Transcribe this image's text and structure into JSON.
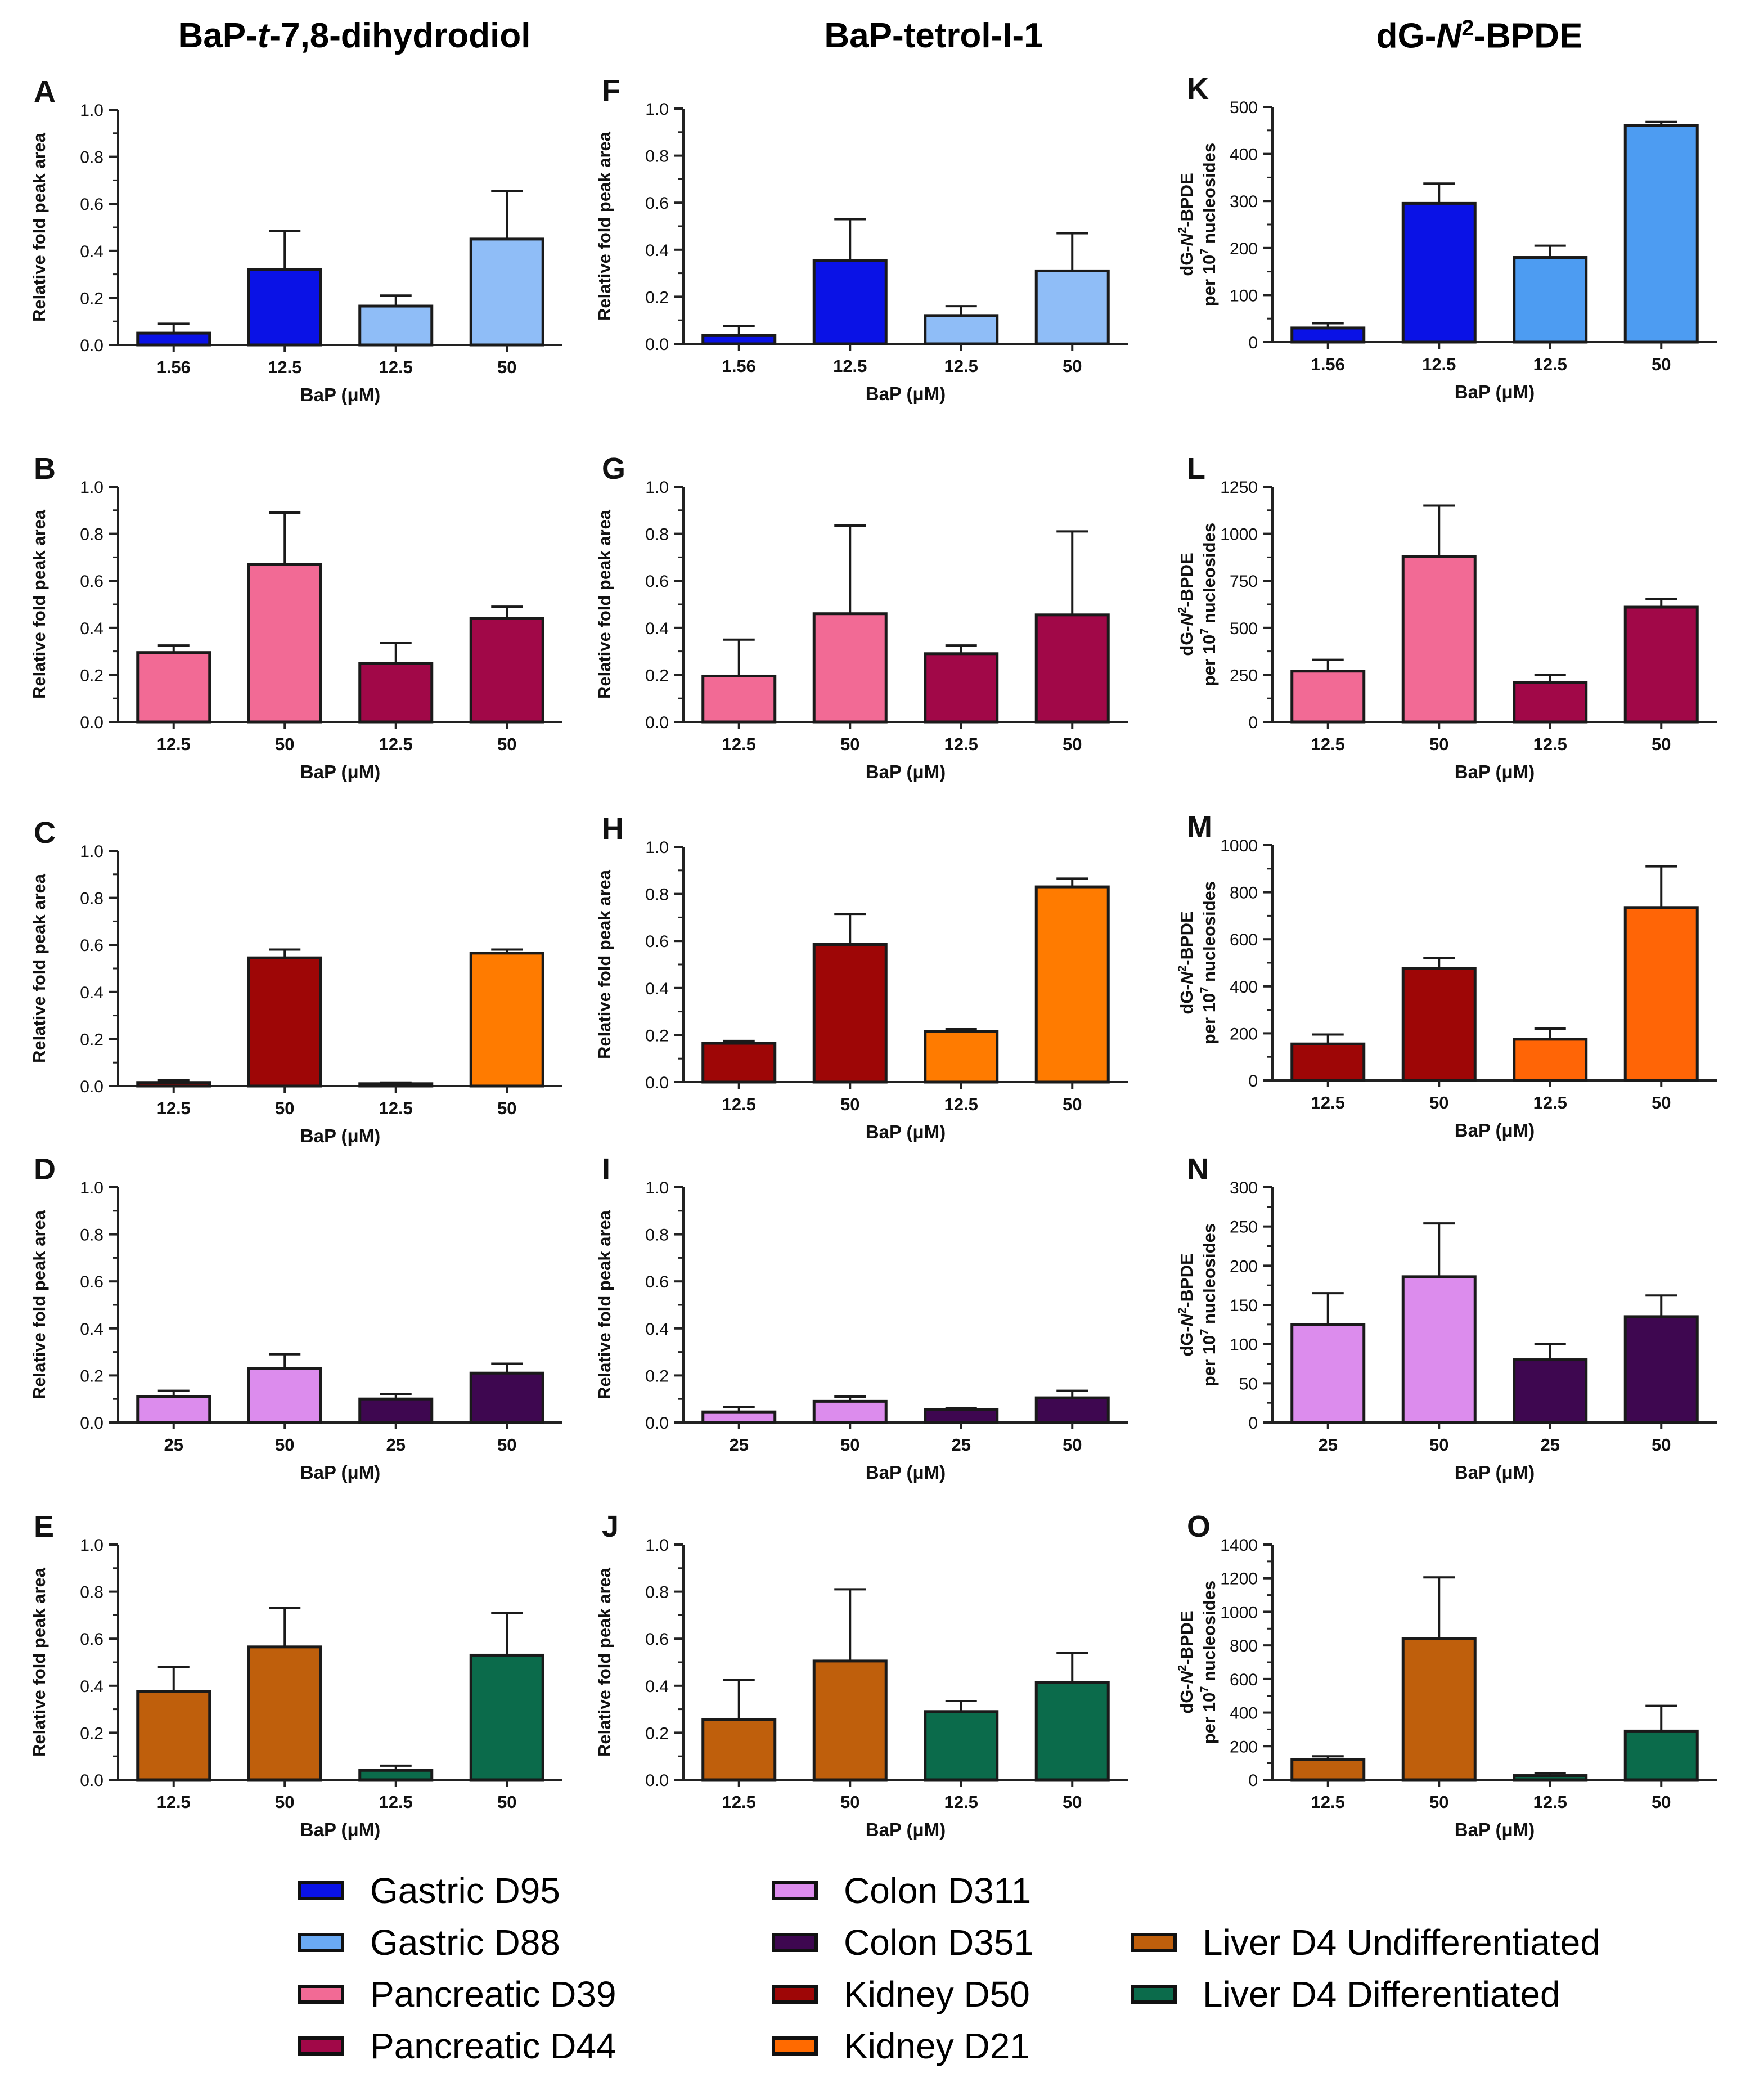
{
  "column_titles": {
    "col1": [
      "BaP-",
      "t",
      "-7,8-dihydrodiol"
    ],
    "col2": "BaP-tetrol-I-1",
    "col3": [
      "dG-",
      "N",
      "2",
      "-BPDE"
    ]
  },
  "colors": {
    "gastric_d95": "#0a12e6",
    "gastric_d88": "#8fbdf7",
    "gastric_d88_k": "#4d9cf2",
    "pancreatic_d39": "#f26a95",
    "pancreatic_d44": "#a10848",
    "colon_d311": "#dc8ced",
    "colon_d351": "#3e0750",
    "kidney_d50": "#9e0606",
    "kidney_d21": "#ff7b00",
    "kidney_d21_m": "#ff6506",
    "liver_undiff": "#bf5f0c",
    "liver_diff": "#0b6b4b"
  },
  "legend": [
    {
      "label": "Gastric D95",
      "color": "#0a12e6"
    },
    {
      "label": "Gastric D88",
      "color": "#6aaaf4"
    },
    {
      "label": "Pancreatic D39",
      "color": "#f26a95"
    },
    {
      "label": "Pancreatic D44",
      "color": "#a10848"
    },
    {
      "label": "Colon D311",
      "color": "#dc8ced"
    },
    {
      "label": "Colon D351",
      "color": "#3e0750"
    },
    {
      "label": "Kidney D50",
      "color": "#9e0606"
    },
    {
      "label": "Kidney D21",
      "color": "#ff6a00"
    },
    {
      "label": "Liver D4 Undifferentiated",
      "color": "#bf5f0c"
    },
    {
      "label": "Liver D4 Differentiated",
      "color": "#0b6b4b"
    }
  ],
  "chart_data": [
    {
      "panel": "A",
      "type": "bar",
      "ylabel": "Relative fold peak area",
      "xlabel": "BaP (μM)",
      "ylim": [
        0,
        1.0
      ],
      "yticks": [
        0.0,
        0.2,
        0.4,
        0.6,
        0.8,
        1.0
      ],
      "tick_fmt": 1,
      "categories": [
        "1.56",
        "12.5",
        "12.5",
        "50"
      ],
      "values": [
        0.05,
        0.32,
        0.165,
        0.45
      ],
      "errors": [
        0.04,
        0.165,
        0.045,
        0.205
      ],
      "colors": [
        "#0a12e6",
        "#0a12e6",
        "#8fbdf7",
        "#8fbdf7"
      ]
    },
    {
      "panel": "B",
      "type": "bar",
      "ylabel": "Relative fold peak area",
      "xlabel": "BaP (μM)",
      "ylim": [
        0,
        1.0
      ],
      "yticks": [
        0.0,
        0.2,
        0.4,
        0.6,
        0.8,
        1.0
      ],
      "tick_fmt": 1,
      "categories": [
        "12.5",
        "50",
        "12.5",
        "50"
      ],
      "values": [
        0.295,
        0.67,
        0.25,
        0.44
      ],
      "errors": [
        0.03,
        0.22,
        0.085,
        0.05
      ],
      "colors": [
        "#f26a95",
        "#f26a95",
        "#a10848",
        "#a10848"
      ]
    },
    {
      "panel": "C",
      "type": "bar",
      "ylabel": "Relative fold peak area",
      "xlabel": "BaP (μM)",
      "ylim": [
        0,
        1.0
      ],
      "yticks": [
        0.0,
        0.2,
        0.4,
        0.6,
        0.8,
        1.0
      ],
      "tick_fmt": 1,
      "categories": [
        "12.5",
        "50",
        "12.5",
        "50"
      ],
      "values": [
        0.015,
        0.545,
        0.01,
        0.565
      ],
      "errors": [
        0.01,
        0.035,
        0.005,
        0.015
      ],
      "colors": [
        "#9e0606",
        "#9e0606",
        "#ff7b00",
        "#ff7b00"
      ]
    },
    {
      "panel": "D",
      "type": "bar",
      "ylabel": "Relative fold peak area",
      "xlabel": "BaP (μM)",
      "ylim": [
        0,
        1.0
      ],
      "yticks": [
        0.0,
        0.2,
        0.4,
        0.6,
        0.8,
        1.0
      ],
      "tick_fmt": 1,
      "categories": [
        "25",
        "50",
        "25",
        "50"
      ],
      "values": [
        0.11,
        0.23,
        0.1,
        0.21
      ],
      "errors": [
        0.025,
        0.06,
        0.02,
        0.04
      ],
      "colors": [
        "#dc8ced",
        "#dc8ced",
        "#3e0750",
        "#3e0750"
      ]
    },
    {
      "panel": "E",
      "type": "bar",
      "ylabel": "Relative fold peak area",
      "xlabel": "BaP (μM)",
      "ylim": [
        0,
        1.0
      ],
      "yticks": [
        0.0,
        0.2,
        0.4,
        0.6,
        0.8,
        1.0
      ],
      "tick_fmt": 1,
      "categories": [
        "12.5",
        "50",
        "12.5",
        "50"
      ],
      "values": [
        0.375,
        0.565,
        0.04,
        0.53
      ],
      "errors": [
        0.105,
        0.165,
        0.02,
        0.18
      ],
      "colors": [
        "#bf5f0c",
        "#bf5f0c",
        "#0b6b4b",
        "#0b6b4b"
      ]
    },
    {
      "panel": "F",
      "type": "bar",
      "ylabel": "Relative fold peak area",
      "xlabel": "BaP (μM)",
      "ylim": [
        0,
        1.0
      ],
      "yticks": [
        0.0,
        0.2,
        0.4,
        0.6,
        0.8,
        1.0
      ],
      "tick_fmt": 1,
      "categories": [
        "1.56",
        "12.5",
        "12.5",
        "50"
      ],
      "values": [
        0.035,
        0.355,
        0.12,
        0.31
      ],
      "errors": [
        0.04,
        0.175,
        0.04,
        0.16
      ],
      "colors": [
        "#0a12e6",
        "#0a12e6",
        "#8fbdf7",
        "#8fbdf7"
      ]
    },
    {
      "panel": "G",
      "type": "bar",
      "ylabel": "Relative fold peak area",
      "xlabel": "BaP (μM)",
      "ylim": [
        0,
        1.0
      ],
      "yticks": [
        0.0,
        0.2,
        0.4,
        0.6,
        0.8,
        1.0
      ],
      "tick_fmt": 1,
      "categories": [
        "12.5",
        "50",
        "12.5",
        "50"
      ],
      "values": [
        0.195,
        0.46,
        0.29,
        0.455
      ],
      "errors": [
        0.155,
        0.375,
        0.035,
        0.355
      ],
      "colors": [
        "#f26a95",
        "#f26a95",
        "#a10848",
        "#a10848"
      ]
    },
    {
      "panel": "H",
      "type": "bar",
      "ylabel": "Relative fold peak area",
      "xlabel": "BaP (μM)",
      "ylim": [
        0,
        1.0
      ],
      "yticks": [
        0.0,
        0.2,
        0.4,
        0.6,
        0.8,
        1.0
      ],
      "tick_fmt": 1,
      "categories": [
        "12.5",
        "50",
        "12.5",
        "50"
      ],
      "values": [
        0.165,
        0.585,
        0.215,
        0.83
      ],
      "errors": [
        0.01,
        0.13,
        0.01,
        0.035
      ],
      "colors": [
        "#9e0606",
        "#9e0606",
        "#ff7b00",
        "#ff7b00"
      ]
    },
    {
      "panel": "I",
      "type": "bar",
      "ylabel": "Relative fold peak area",
      "xlabel": "BaP (μM)",
      "ylim": [
        0,
        1.0
      ],
      "yticks": [
        0.0,
        0.2,
        0.4,
        0.6,
        0.8,
        1.0
      ],
      "tick_fmt": 1,
      "categories": [
        "25",
        "50",
        "25",
        "50"
      ],
      "values": [
        0.045,
        0.09,
        0.055,
        0.105
      ],
      "errors": [
        0.02,
        0.02,
        0.005,
        0.03
      ],
      "colors": [
        "#dc8ced",
        "#dc8ced",
        "#3e0750",
        "#3e0750"
      ]
    },
    {
      "panel": "J",
      "type": "bar",
      "ylabel": "Relative fold peak area",
      "xlabel": "BaP (μM)",
      "ylim": [
        0,
        1.0
      ],
      "yticks": [
        0.0,
        0.2,
        0.4,
        0.6,
        0.8,
        1.0
      ],
      "tick_fmt": 1,
      "categories": [
        "12.5",
        "50",
        "12.5",
        "50"
      ],
      "values": [
        0.255,
        0.505,
        0.29,
        0.415
      ],
      "errors": [
        0.17,
        0.305,
        0.045,
        0.125
      ],
      "colors": [
        "#bf5f0c",
        "#bf5f0c",
        "#0b6b4b",
        "#0b6b4b"
      ]
    },
    {
      "panel": "K",
      "type": "bar",
      "ylabel": [
        "dG-",
        "N",
        "2",
        "-BPDE"
      ],
      "ylabel2": [
        "per 10",
        "7",
        " nucleosides"
      ],
      "xlabel": "BaP (μM)",
      "ylim": [
        0,
        500
      ],
      "yticks": [
        0,
        100,
        200,
        300,
        400,
        500
      ],
      "tick_fmt": 0,
      "categories": [
        "1.56",
        "12.5",
        "12.5",
        "50"
      ],
      "values": [
        30,
        295,
        180,
        460
      ],
      "errors": [
        10,
        42,
        25,
        8
      ],
      "colors": [
        "#0a12e6",
        "#0a12e6",
        "#4d9cf2",
        "#4d9cf2"
      ]
    },
    {
      "panel": "L",
      "type": "bar",
      "ylabel": [
        "dG-",
        "N",
        "2",
        "-BPDE"
      ],
      "ylabel2": [
        "per 10",
        "7",
        " nucleosides"
      ],
      "xlabel": "BaP (μM)",
      "ylim": [
        0,
        1250
      ],
      "yticks": [
        0,
        250,
        500,
        750,
        1000,
        1250
      ],
      "tick_fmt": 0,
      "categories": [
        "12.5",
        "50",
        "12.5",
        "50"
      ],
      "values": [
        270,
        880,
        210,
        610
      ],
      "errors": [
        60,
        270,
        40,
        45
      ],
      "colors": [
        "#f26a95",
        "#f26a95",
        "#a10848",
        "#a10848"
      ]
    },
    {
      "panel": "M",
      "type": "bar",
      "ylabel": [
        "dG-",
        "N",
        "2",
        "-BPDE"
      ],
      "ylabel2": [
        "per 10",
        "7",
        " nucleosides"
      ],
      "xlabel": "BaP (μM)",
      "ylim": [
        0,
        1000
      ],
      "yticks": [
        0,
        200,
        400,
        600,
        800,
        1000
      ],
      "tick_fmt": 0,
      "categories": [
        "12.5",
        "50",
        "12.5",
        "50"
      ],
      "values": [
        155,
        475,
        175,
        735
      ],
      "errors": [
        40,
        45,
        45,
        175
      ],
      "colors": [
        "#9e0606",
        "#9e0606",
        "#ff6506",
        "#ff6506"
      ]
    },
    {
      "panel": "N",
      "type": "bar",
      "ylabel": [
        "dG-",
        "N",
        "2",
        "-BPDE"
      ],
      "ylabel2": [
        "per 10",
        "7",
        " nucleosides"
      ],
      "xlabel": "BaP (μM)",
      "ylim": [
        0,
        300
      ],
      "yticks": [
        0,
        50,
        100,
        150,
        200,
        250,
        300
      ],
      "tick_fmt": 0,
      "categories": [
        "25",
        "50",
        "25",
        "50"
      ],
      "values": [
        125,
        186,
        80,
        135
      ],
      "errors": [
        40,
        68,
        20,
        27
      ],
      "colors": [
        "#dc8ced",
        "#dc8ced",
        "#3e0750",
        "#3e0750"
      ]
    },
    {
      "panel": "O",
      "type": "bar",
      "ylabel": [
        "dG-",
        "N",
        "2",
        "-BPDE"
      ],
      "ylabel2": [
        "per 10",
        "7",
        " nucleosides"
      ],
      "xlabel": "BaP (μM)",
      "ylim": [
        0,
        1400
      ],
      "yticks": [
        0,
        200,
        400,
        600,
        800,
        1000,
        1200,
        1400
      ],
      "tick_fmt": 0,
      "categories": [
        "12.5",
        "50",
        "12.5",
        "50"
      ],
      "values": [
        120,
        840,
        25,
        290
      ],
      "errors": [
        20,
        365,
        15,
        150
      ],
      "colors": [
        "#bf5f0c",
        "#bf5f0c",
        "#0b6b4b",
        "#0b6b4b"
      ]
    }
  ]
}
